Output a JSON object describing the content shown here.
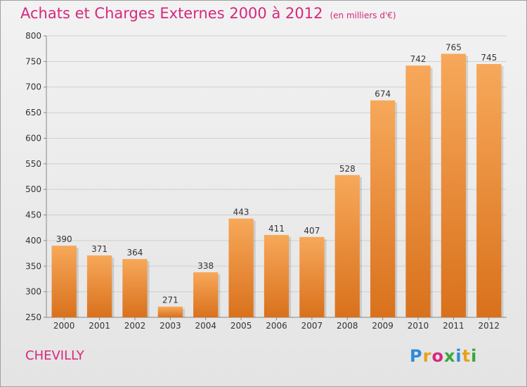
{
  "title": "Achats et Charges Externes 2000 à 2012",
  "unit": "(en milliers d'€)",
  "commune": "CHEVILLY",
  "logo": {
    "letters": [
      "P",
      "r",
      "o",
      "x",
      "i",
      "t",
      "i"
    ],
    "colors": [
      "#2e8bd6",
      "#e8a21a",
      "#d6287c",
      "#3aa63a",
      "#2e8bd6",
      "#e8a21a",
      "#3aa63a"
    ]
  },
  "colors": {
    "bar_top": "#f7a85a",
    "bar_bottom": "#d9711c",
    "title": "#d6287c"
  },
  "chart_data": {
    "type": "bar",
    "title": "Achats et Charges Externes 2000 à 2012",
    "subtitle": "(en milliers d'€)",
    "categories": [
      "2000",
      "2001",
      "2002",
      "2003",
      "2004",
      "2005",
      "2006",
      "2007",
      "2008",
      "2009",
      "2010",
      "2011",
      "2012"
    ],
    "values": [
      390,
      371,
      364,
      271,
      338,
      443,
      411,
      407,
      528,
      674,
      742,
      765,
      745
    ],
    "ylim": [
      250,
      800
    ],
    "yticks": [
      250,
      300,
      350,
      400,
      450,
      500,
      550,
      600,
      650,
      700,
      750,
      800
    ],
    "grid": true,
    "xlabel": "",
    "ylabel": ""
  }
}
